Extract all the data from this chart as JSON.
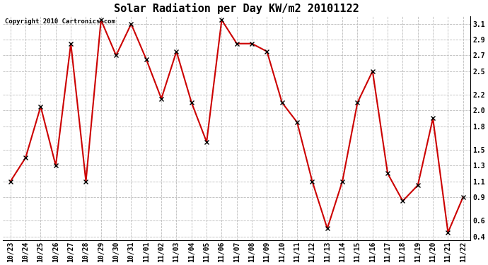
{
  "title": "Solar Radiation per Day KW/m2 20101122",
  "copyright_text": "Copyright 2010 Cartronics.com",
  "labels": [
    "10/23",
    "10/24",
    "10/25",
    "10/26",
    "10/27",
    "10/28",
    "10/29",
    "10/30",
    "10/31",
    "11/01",
    "11/02",
    "11/03",
    "11/04",
    "11/05",
    "11/06",
    "11/07",
    "11/08",
    "11/09",
    "11/10",
    "11/11",
    "11/12",
    "11/13",
    "11/14",
    "11/15",
    "11/16",
    "11/17",
    "11/18",
    "11/19",
    "11/20",
    "11/21",
    "11/22"
  ],
  "values": [
    1.1,
    1.4,
    2.05,
    1.3,
    2.85,
    1.1,
    3.15,
    2.7,
    3.1,
    2.65,
    2.15,
    2.75,
    2.1,
    1.6,
    3.15,
    2.85,
    2.85,
    2.75,
    2.1,
    1.85,
    1.1,
    0.5,
    1.1,
    2.1,
    2.5,
    1.2,
    0.85,
    1.05,
    1.9,
    0.45,
    0.9
  ],
  "line_color": "#cc0000",
  "marker": "x",
  "marker_size": 4,
  "marker_color": "#000000",
  "bg_color": "#ffffff",
  "grid_color": "#bbbbbb",
  "ytick_labels": [
    "3.1",
    "2.9",
    "2.7",
    "2.5",
    "2.2",
    "2.0",
    "1.8",
    "1.5",
    "1.3",
    "1.1",
    "0.9",
    "0.6",
    "0.4"
  ],
  "ytick_values": [
    3.1,
    2.9,
    2.7,
    2.5,
    2.2,
    2.0,
    1.8,
    1.5,
    1.3,
    1.1,
    0.9,
    0.6,
    0.4
  ],
  "ylim_min": 0.35,
  "ylim_max": 3.2,
  "title_fontsize": 11,
  "tick_fontsize": 7,
  "copyright_fontsize": 6.5
}
